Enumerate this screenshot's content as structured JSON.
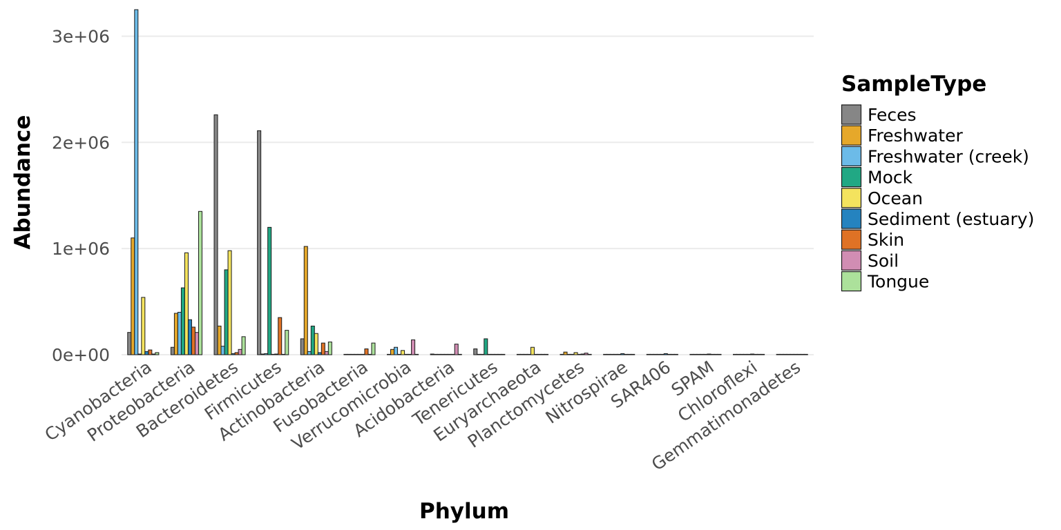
{
  "chart_data": {
    "type": "bar",
    "title": "",
    "xlabel": "Phylum",
    "ylabel": "Abundance",
    "ylim": [
      0,
      3250000
    ],
    "yticks": [
      0,
      1000000,
      2000000,
      3000000
    ],
    "ytick_labels": [
      "0e+00",
      "1e+06",
      "2e+06",
      "3e+06"
    ],
    "grid": true,
    "legend_title": "SampleType",
    "legend_position": "right",
    "categories": [
      "Cyanobacteria",
      "Proteobacteria",
      "Bacteroidetes",
      "Firmicutes",
      "Actinobacteria",
      "Fusobacteria",
      "Verrucomicrobia",
      "Acidobacteria",
      "Tenericutes",
      "Euryarchaeota",
      "Planctomycetes",
      "Nitrospirae",
      "SAR406",
      "SPAM",
      "Chloroflexi",
      "Gemmatimonadetes"
    ],
    "series": [
      {
        "name": "Feces",
        "color": "#868686",
        "values": [
          210000,
          70000,
          2260000,
          2110000,
          150000,
          0,
          0,
          3000,
          55000,
          0,
          0,
          0,
          0,
          0,
          0,
          0
        ]
      },
      {
        "name": "Freshwater",
        "color": "#e6a82a",
        "values": [
          1100000,
          390000,
          270000,
          5000,
          1020000,
          0,
          50000,
          0,
          0,
          0,
          25000,
          0,
          0,
          0,
          0,
          0
        ]
      },
      {
        "name": "Freshwater (creek)",
        "color": "#6cbbe8",
        "values": [
          3250000,
          400000,
          80000,
          10000,
          30000,
          0,
          70000,
          0,
          0,
          0,
          0,
          0,
          0,
          0,
          0,
          0
        ]
      },
      {
        "name": "Mock",
        "color": "#21a884",
        "values": [
          5000,
          630000,
          800000,
          1200000,
          270000,
          0,
          0,
          0,
          150000,
          0,
          0,
          0,
          0,
          0,
          0,
          0
        ]
      },
      {
        "name": "Ocean",
        "color": "#f4e35e",
        "values": [
          540000,
          960000,
          980000,
          0,
          200000,
          0,
          40000,
          0,
          0,
          70000,
          20000,
          0,
          0,
          0,
          0,
          0
        ]
      },
      {
        "name": "Sediment (estuary)",
        "color": "#2583bf",
        "values": [
          30000,
          330000,
          10000,
          5000,
          20000,
          0,
          0,
          0,
          0,
          0,
          0,
          10000,
          10000,
          5000,
          5000,
          0
        ]
      },
      {
        "name": "Skin",
        "color": "#df7225",
        "values": [
          45000,
          260000,
          20000,
          350000,
          110000,
          55000,
          0,
          0,
          0,
          0,
          5000,
          0,
          0,
          0,
          0,
          0
        ]
      },
      {
        "name": "Soil",
        "color": "#d18db3",
        "values": [
          5000,
          210000,
          50000,
          0,
          30000,
          0,
          140000,
          100000,
          0,
          0,
          15000,
          0,
          0,
          0,
          0,
          0
        ]
      },
      {
        "name": "Tongue",
        "color": "#ace19b",
        "values": [
          20000,
          1350000,
          170000,
          230000,
          120000,
          110000,
          0,
          0,
          0,
          0,
          0,
          0,
          0,
          0,
          0,
          0
        ]
      }
    ]
  }
}
